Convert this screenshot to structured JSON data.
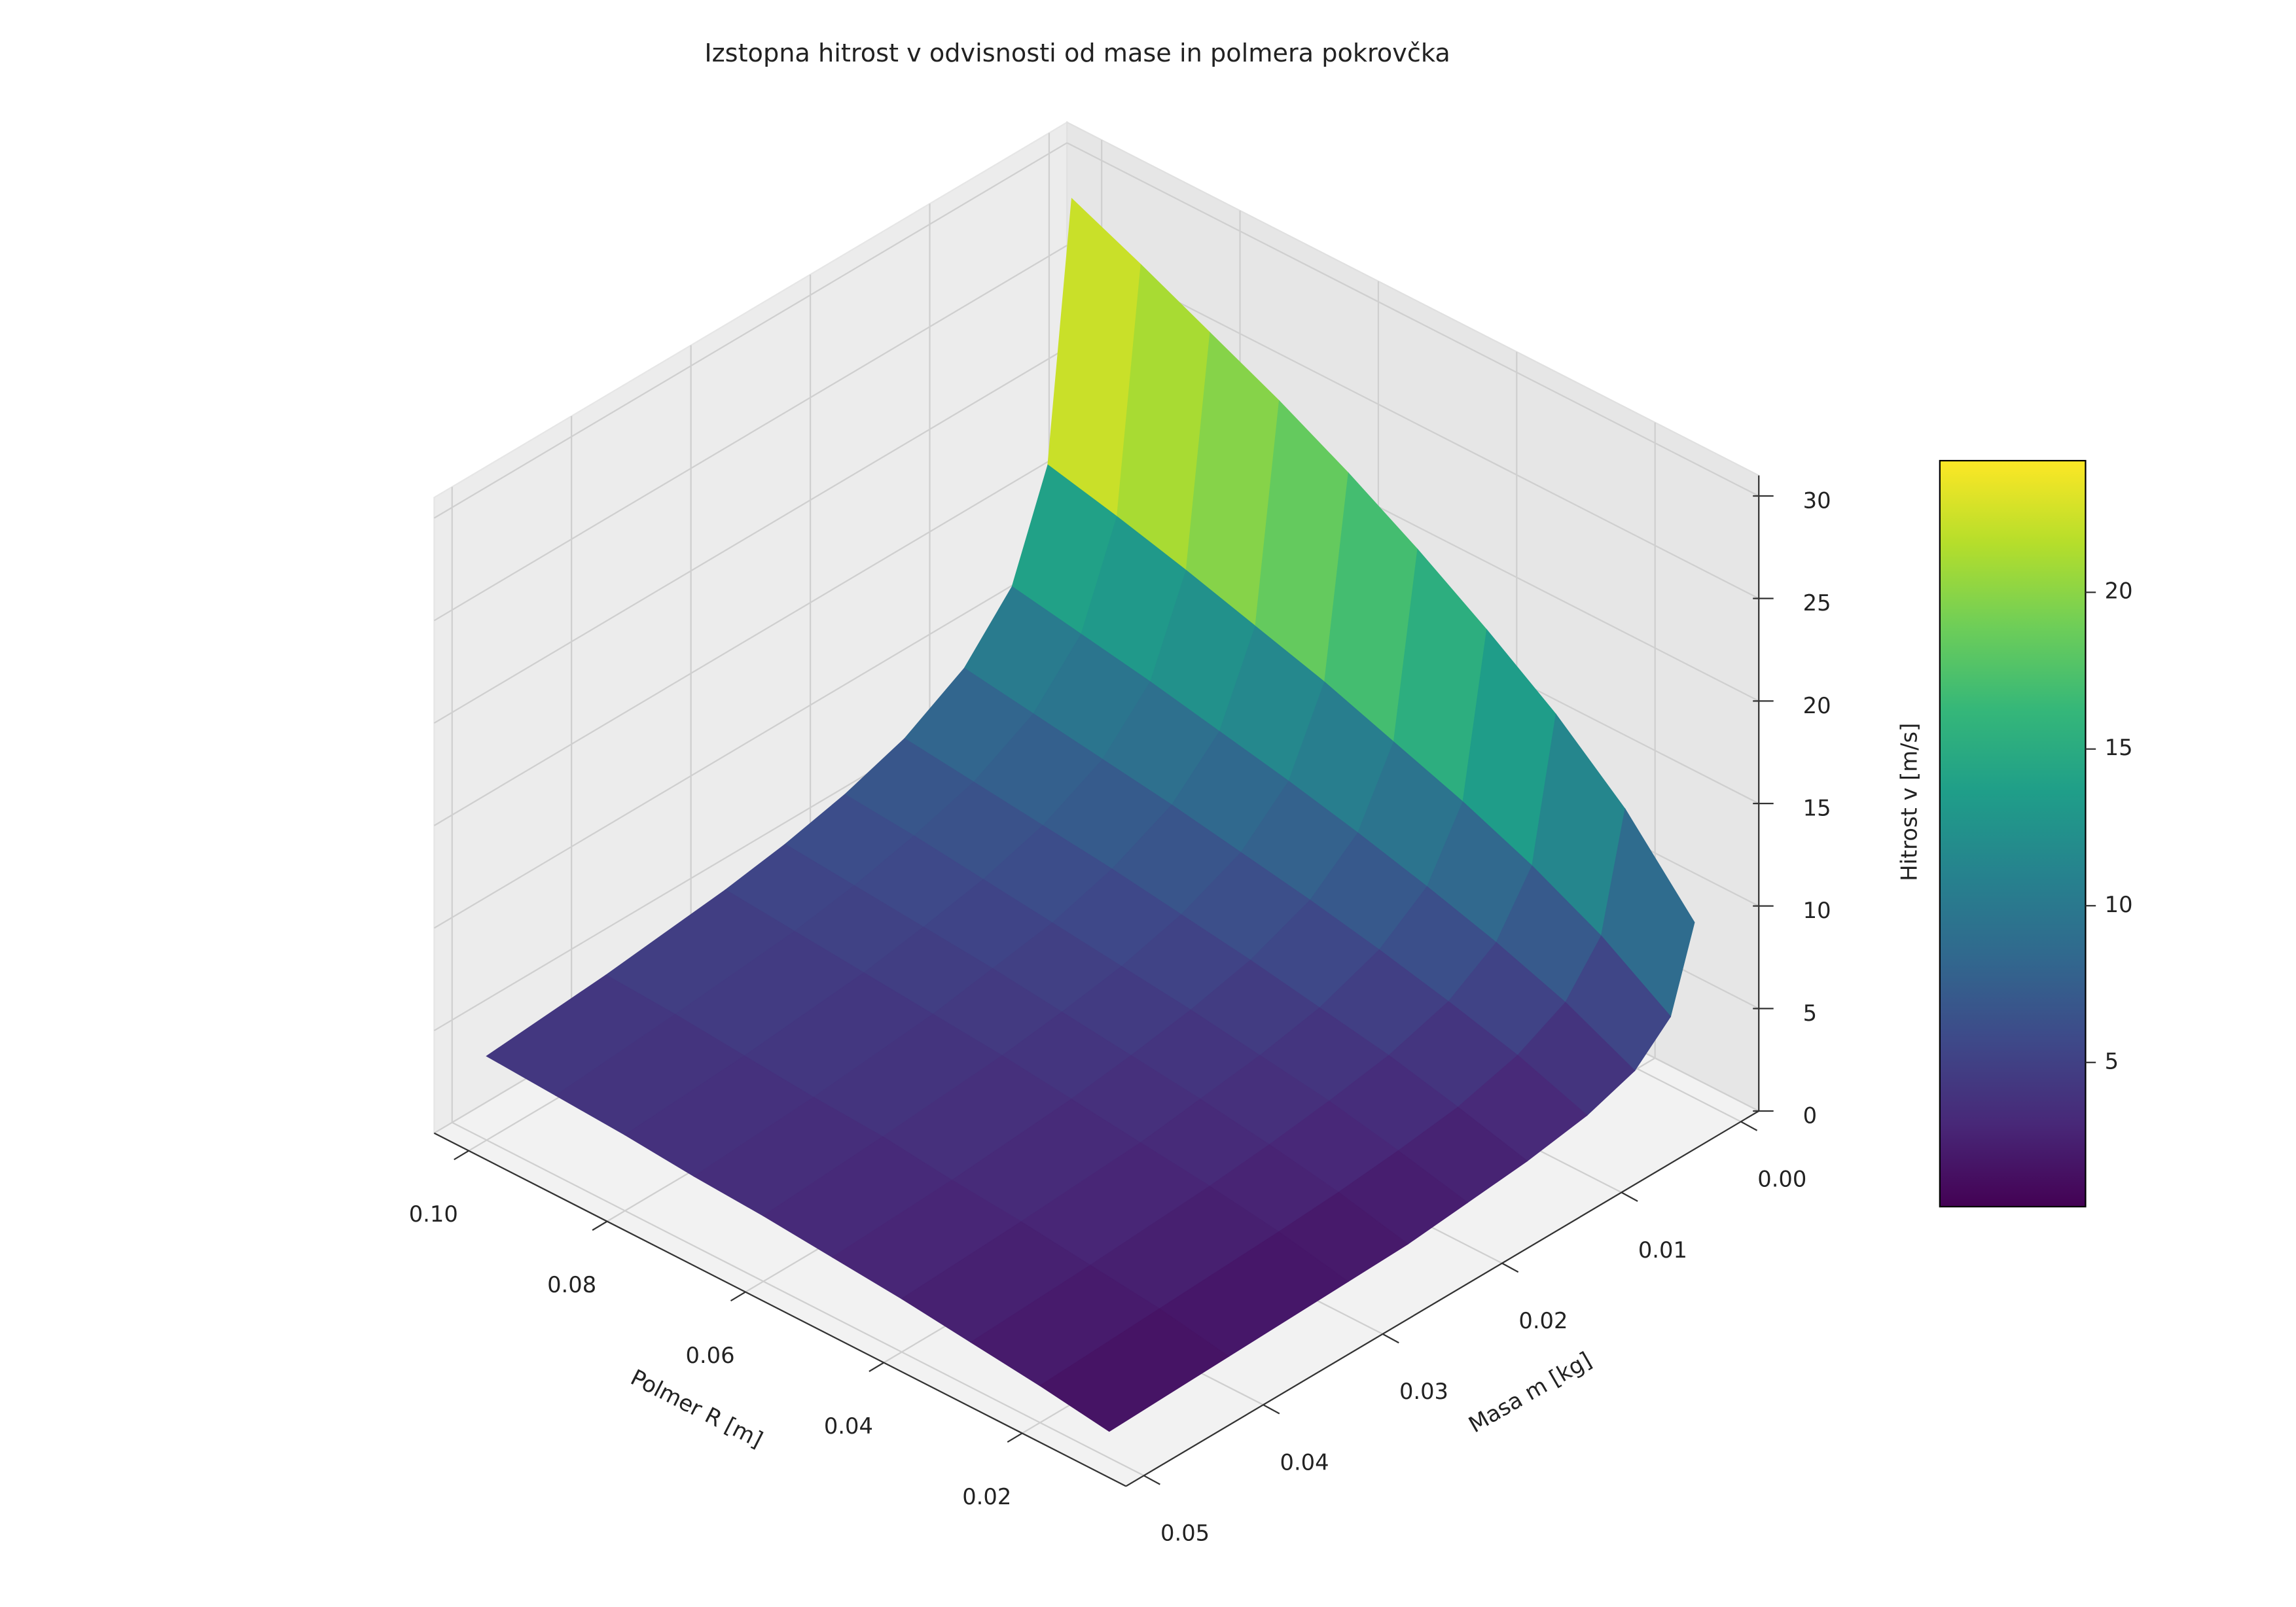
{
  "chart_data": {
    "type": "surface",
    "title": "Izstopna hitrost v odvisnosti od mase in polmera pokrovčka",
    "xlabel": "Polmer R [m]",
    "ylabel": "Masa m [kg]",
    "zlabel": "Hitrost v [m/s]",
    "x": [
      0.01,
      0.02,
      0.03,
      0.04,
      0.05,
      0.06,
      0.07,
      0.08,
      0.09,
      0.1
    ],
    "y": [
      0.001,
      0.003,
      0.006,
      0.01,
      0.015,
      0.02,
      0.025,
      0.03,
      0.04,
      0.05
    ],
    "z": [
      [
        9.2,
        13.0,
        15.9,
        18.3,
        20.5,
        22.5,
        24.3,
        25.9,
        27.5,
        29.0
      ],
      [
        5.3,
        7.5,
        9.2,
        10.6,
        11.8,
        13.0,
        14.0,
        15.0,
        15.9,
        16.7
      ],
      [
        3.7,
        5.3,
        6.5,
        7.5,
        8.4,
        9.2,
        9.9,
        10.6,
        11.2,
        11.8
      ],
      [
        2.9,
        4.1,
        5.0,
        5.8,
        6.5,
        7.1,
        7.7,
        8.2,
        8.7,
        9.2
      ],
      [
        2.4,
        3.3,
        4.1,
        4.7,
        5.3,
        5.8,
        6.3,
        6.7,
        7.1,
        7.5
      ],
      [
        2.1,
        2.9,
        3.6,
        4.1,
        4.6,
        5.0,
        5.4,
        5.8,
        6.2,
        6.5
      ],
      [
        1.8,
        2.6,
        3.2,
        3.7,
        4.1,
        4.5,
        4.9,
        5.2,
        5.5,
        5.8
      ],
      [
        1.7,
        2.4,
        2.9,
        3.3,
        3.7,
        4.1,
        4.4,
        4.7,
        5.0,
        5.3
      ],
      [
        1.5,
        2.1,
        2.5,
        2.9,
        3.2,
        3.6,
        3.8,
        4.1,
        4.4,
        4.6
      ],
      [
        1.3,
        1.8,
        2.2,
        2.6,
        2.9,
        3.2,
        3.4,
        3.7,
        3.9,
        4.1
      ]
    ],
    "xlim": [
      0.005,
      0.105
    ],
    "ylim": [
      -0.0015,
      0.0515
    ],
    "zlim": [
      0,
      31
    ],
    "xticks": [
      0.02,
      0.04,
      0.06,
      0.08,
      {
        "value": 0.1,
        "label": "0.10"
      }
    ],
    "yticks": [
      {
        "value": 0,
        "label": "0.00"
      },
      0.01,
      0.02,
      0.03,
      0.04,
      0.05
    ],
    "zticks": [
      0,
      5,
      10,
      15,
      20,
      25,
      30
    ],
    "clim": [
      0.4,
      24.2
    ],
    "cticks": [
      5,
      10,
      15,
      20
    ],
    "colormap": [
      "#440154",
      "#482878",
      "#3e4989",
      "#31688e",
      "#26828e",
      "#1f9e89",
      "#35b779",
      "#6ece58",
      "#b5de2b",
      "#fde725"
    ],
    "grid": true
  }
}
